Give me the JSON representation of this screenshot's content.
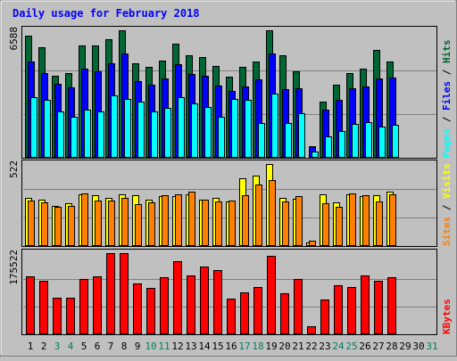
{
  "chart_data": [
    {
      "type": "bar",
      "title": "Daily usage for February 2018",
      "categories": [
        "1",
        "2",
        "3",
        "4",
        "5",
        "6",
        "7",
        "8",
        "9",
        "10",
        "11",
        "12",
        "13",
        "14",
        "15",
        "16",
        "17",
        "18",
        "19",
        "20",
        "21",
        "22",
        "23",
        "24",
        "25",
        "26",
        "27",
        "28",
        "29",
        "30",
        "31"
      ],
      "weekend_days": [
        "3",
        "4",
        "10",
        "11",
        "17",
        "18",
        "24",
        "25",
        "31"
      ],
      "ylabel_top": "6588",
      "series": [
        {
          "name": "Hits",
          "color": "#006633",
          "values": [
            6300,
            5700,
            4250,
            4400,
            5800,
            5800,
            6150,
            6600,
            4900,
            4700,
            5050,
            5900,
            5300,
            5200,
            4750,
            4200,
            4700,
            5000,
            6588,
            5300,
            4500,
            0,
            2900,
            3800,
            4400,
            4600,
            5600,
            5000,
            0,
            0,
            0
          ]
        },
        {
          "name": "Files",
          "color": "#0000ff",
          "values": [
            5000,
            4400,
            3850,
            3650,
            4600,
            4500,
            4900,
            5400,
            3950,
            3800,
            4100,
            4850,
            4350,
            4250,
            3750,
            3450,
            3700,
            4050,
            5400,
            3550,
            3600,
            600,
            2500,
            3000,
            3600,
            3700,
            4100,
            4150,
            0,
            0,
            0
          ]
        },
        {
          "name": "Pages",
          "color": "#00ffff",
          "values": [
            3150,
            3000,
            2400,
            2100,
            2500,
            2400,
            3250,
            3050,
            2900,
            2400,
            2600,
            3150,
            2800,
            2650,
            2100,
            3050,
            3000,
            1800,
            3300,
            1800,
            2300,
            300,
            1100,
            1400,
            1750,
            1850,
            1600,
            1700,
            0,
            0,
            0
          ]
        }
      ],
      "legend_text": [
        "Pages",
        "Files",
        "Hits"
      ]
    },
    {
      "type": "bar",
      "ylabel_top": "522",
      "series": [
        {
          "name": "Visits",
          "color": "#ffff00",
          "values": [
            305,
            295,
            255,
            270,
            330,
            325,
            305,
            330,
            325,
            295,
            320,
            320,
            330,
            295,
            305,
            285,
            430,
            450,
            522,
            305,
            300,
            25,
            330,
            280,
            330,
            320,
            325,
            345,
            0,
            0,
            0
          ]
        },
        {
          "name": "Sites",
          "color": "#ff8000",
          "values": [
            290,
            280,
            250,
            255,
            335,
            290,
            290,
            305,
            265,
            280,
            325,
            330,
            345,
            295,
            285,
            290,
            325,
            390,
            420,
            285,
            315,
            35,
            275,
            250,
            335,
            325,
            285,
            330,
            0,
            0,
            0
          ]
        }
      ],
      "legend_text": [
        "Sites",
        "Visits"
      ]
    },
    {
      "type": "bar",
      "ylabel_top": "175522",
      "series": [
        {
          "name": "KBytes",
          "color": "#ff0000",
          "values": [
            125000,
            115000,
            80000,
            80000,
            120000,
            125000,
            175522,
            175522,
            110000,
            100000,
            123000,
            158000,
            127000,
            146000,
            138000,
            77000,
            90000,
            103000,
            170000,
            88000,
            120000,
            17000,
            76000,
            107000,
            103000,
            128000,
            115000,
            124000,
            0,
            0,
            0
          ]
        }
      ],
      "legend_text": [
        "KBytes"
      ]
    }
  ],
  "colors": {
    "background": "#c0c0c0",
    "title": "#0000ff",
    "hits": "#006633",
    "files": "#0000ff",
    "pages": "#00ffff",
    "visits": "#ffff00",
    "sites": "#ff8000",
    "kbytes": "#ff0000",
    "weekday_label": "#000000",
    "weekend_label": "#00805c"
  }
}
